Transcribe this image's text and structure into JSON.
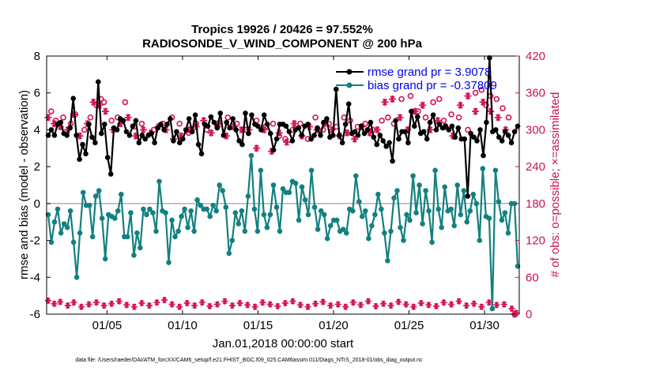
{
  "chart_data": {
    "type": "line",
    "title_line1": "Tropics 19926 / 20426 = 97.552%",
    "title_line2": "RADIOSONDE_V_WIND_COMPONENT @ 200 hPa",
    "xlabel": "Jan.01,2018 00:00:00 start",
    "ylabel": "rmse and bias (model - observation)",
    "ylabel_right": "# of obs: o=possible; ×=assimilated",
    "xlim": [
      1,
      32.3
    ],
    "ylim": [
      -6,
      8
    ],
    "ylim_right": [
      0,
      420
    ],
    "x_ticks": [
      5,
      10,
      15,
      20,
      25,
      30
    ],
    "x_tick_labels": [
      "01/05",
      "01/10",
      "01/15",
      "01/20",
      "01/25",
      "01/30"
    ],
    "y_ticks": [
      -6,
      -4,
      -2,
      0,
      2,
      4,
      6,
      8
    ],
    "y_tick_labels": [
      "-6",
      "-4",
      "-2",
      "0",
      "2",
      "4",
      "6",
      "8"
    ],
    "y2_ticks": [
      0,
      60,
      120,
      180,
      240,
      300,
      360,
      420
    ],
    "y2_tick_labels": [
      "0",
      "60",
      "120",
      "180",
      "240",
      "300",
      "360",
      "420"
    ],
    "footer": "data file: /Users/raeder/DAI/ATM_forcXX/CAM6_setup/f.e21.FHIST_BGC.f09_025.CAM6assim.011/Diags_NTrS_2018-01/obs_diag_output.nc",
    "colors": {
      "rmse": "#000000",
      "bias": "#138080",
      "counts": "#d4145a",
      "zero": "#b0b0b0",
      "legend_text": "#0000ee"
    },
    "series": [
      {
        "name": "rmse grand pr = 3.9078",
        "values": [
          3.7,
          4.0,
          3.7,
          4.3,
          4.4,
          3.8,
          3.7,
          4.1,
          5.7,
          3.7,
          2.4,
          3.2,
          2.7,
          4.3,
          3.6,
          3.3,
          6.6,
          3.8,
          4.3,
          2.5,
          1.6,
          4.1,
          4.0,
          4.6,
          4.5,
          3.9,
          3.7,
          4.2,
          4.5,
          3.3,
          3.7,
          3.5,
          3.7,
          3.8,
          3.3,
          4.1,
          4.3,
          4.0,
          4.3,
          4.6,
          3.4,
          3.9,
          3.3,
          3.5,
          4.0,
          4.6,
          3.9,
          4.8,
          3.2,
          2.7,
          4.3,
          4.2,
          4.7,
          4.4,
          4.1,
          4.9,
          3.7,
          4.4,
          4.1,
          4.6,
          4.0,
          3.4,
          3.2,
          4.9,
          3.8,
          4.8,
          4.3,
          4.2,
          4.0,
          4.8,
          4.3,
          3.8,
          2.9,
          3.5,
          4.3,
          4.3,
          4.2,
          3.9,
          3.4,
          4.0,
          4.1,
          3.7,
          4.2,
          4.3,
          3.5,
          3.7,
          4.1,
          3.7,
          4.4,
          4.6,
          3.6,
          3.7,
          6.2,
          3.7,
          3.3,
          4.3,
          5.4,
          3.8,
          3.9,
          3.7,
          4.2,
          3.8,
          4.0,
          4.4,
          3.6,
          3.2,
          3.7,
          3.4,
          3.1,
          3.3,
          2.3,
          4.5,
          3.5,
          3.9,
          3.9,
          3.3,
          5.0,
          4.2,
          4.7,
          3.8,
          3.9,
          3.5,
          4.4,
          4.8,
          4.0,
          4.3,
          4.1,
          4.2,
          4.0,
          4.2,
          3.6,
          4.1,
          3.5,
          3.5,
          0.4,
          3.8,
          3.6,
          3.4,
          4.0,
          2.6,
          4.4,
          7.9,
          3.9,
          4.0,
          3.6,
          3.4,
          3.9,
          3.7,
          3.3,
          3.9,
          4.2
        ],
        "role": "rmse"
      },
      {
        "name": "bias grand pr = -0.37809",
        "values": [
          -0.6,
          -2.1,
          -1.0,
          -0.3,
          -1.6,
          -1.1,
          -1.3,
          -0.4,
          -2.1,
          -4.0,
          -1.6,
          0.6,
          -0.1,
          -0.1,
          -1.8,
          0.4,
          0.7,
          -0.8,
          -3.0,
          -0.6,
          -0.7,
          -0.8,
          -0.4,
          0.5,
          -1.8,
          -1.8,
          -0.5,
          -2.8,
          -1.6,
          -2.4,
          -0.3,
          -0.6,
          -0.3,
          -0.5,
          -1.5,
          1.2,
          -0.4,
          -0.5,
          -3.2,
          -0.9,
          -1.8,
          -1.5,
          -0.7,
          -0.3,
          -1.3,
          -0.4,
          -1.5,
          0.2,
          -0.1,
          -0.3,
          -0.3,
          -0.7,
          -0.1,
          -0.4,
          1.0,
          0.7,
          -0.2,
          -2.7,
          -2.0,
          -0.5,
          -1.1,
          -0.4,
          -1.5,
          0.4,
          2.6,
          -0.3,
          -1.5,
          1.8,
          -0.6,
          -1.3,
          -0.6,
          1.0,
          -0.2,
          -1.5,
          0.8,
          0.6,
          0.6,
          1.2,
          1.1,
          -0.9,
          0.9,
          0.2,
          -0.6,
          1.8,
          -0.2,
          -1.4,
          -0.4,
          -0.6,
          -1.9,
          -1.2,
          -0.9,
          -0.9,
          -1.5,
          -1.4,
          -1.6,
          -0.3,
          -0.4,
          1.5,
          0.1,
          -0.7,
          -0.4,
          -1.9,
          -1.2,
          -0.6,
          0.5,
          -0.3,
          -1.6,
          -3.1,
          -1.5,
          0.3,
          0.7,
          -1.3,
          -2.0,
          -0.6,
          -0.9,
          1.5,
          -0.5,
          1.0,
          -1.1,
          0.7,
          -0.4,
          -2.1,
          1.8,
          -0.3,
          -1.3,
          0.9,
          -0.4,
          -0.3,
          -1.2,
          1.0,
          -0.6,
          0.7,
          -1.0,
          -0.4,
          0.5,
          0.0,
          -2.0,
          1.9,
          -0.7,
          -0.8,
          -5.7,
          1.8,
          0.1,
          -0.9,
          -0.5,
          -1.6,
          0.0,
          0.0,
          -3.4
        ],
        "role": "bias"
      }
    ],
    "obs_possible_x": [
      1.3,
      1.6,
      2.1,
      2.6,
      2.9,
      3.5,
      3.9,
      4.3,
      4.6,
      4.8,
      5.3,
      5.7,
      6.2,
      6.8,
      7.3,
      8.1,
      8.7,
      9.3,
      9.8,
      10.4,
      10.9,
      11.6,
      12.3,
      13.0,
      13.6,
      14.2,
      14.9,
      15.5,
      16.0,
      16.4,
      16.8,
      17.3,
      17.8,
      18.3,
      18.8,
      19.3,
      19.7,
      20.2,
      20.7,
      21.1,
      21.6,
      22.1,
      22.6,
      23.2,
      23.6,
      24.0,
      24.5,
      25.1,
      25.6,
      26.1,
      26.6,
      27.0,
      27.3,
      27.8,
      28.3,
      28.9,
      29.4,
      29.8,
      30.1,
      30.4,
      30.8,
      31.2,
      31.6,
      32.0
    ],
    "obs_possible": [
      330,
      315,
      320,
      310,
      325,
      300,
      320,
      340,
      350,
      345,
      315,
      320,
      345,
      305,
      310,
      300,
      310,
      320,
      310,
      295,
      310,
      300,
      305,
      320,
      310,
      300,
      315,
      305,
      310,
      290,
      285,
      300,
      310,
      285,
      320,
      300,
      310,
      305,
      320,
      315,
      305,
      310,
      300,
      315,
      320,
      310,
      350,
      355,
      330,
      320,
      345,
      350,
      315,
      325,
      320,
      300,
      360,
      365,
      340,
      355,
      350,
      335,
      320,
      0
    ],
    "obs_assim_x": [
      1.1,
      1.5,
      1.9,
      2.4,
      2.8,
      3.2,
      3.7,
      4.1,
      4.5,
      4.9,
      5.4,
      5.9,
      6.4,
      6.9,
      7.4,
      7.9,
      8.4,
      8.9,
      9.4,
      9.9,
      10.4,
      10.9,
      11.4,
      11.9,
      12.4,
      12.9,
      13.4,
      13.9,
      14.4,
      14.9,
      15.4,
      15.9,
      16.4,
      16.9,
      17.4,
      17.9,
      18.4,
      18.9,
      19.4,
      19.9,
      20.4,
      20.9,
      21.4,
      21.9,
      22.4,
      22.9,
      23.4,
      23.9,
      24.4,
      24.9,
      25.4,
      25.9,
      26.4,
      26.9,
      27.4,
      27.9,
      28.4,
      28.9,
      29.4,
      29.9,
      30.4,
      30.9,
      31.4,
      32.0
    ],
    "obs_assim": [
      320,
      310,
      305,
      300,
      325,
      290,
      310,
      345,
      340,
      330,
      300,
      310,
      320,
      290,
      300,
      295,
      305,
      300,
      285,
      290,
      300,
      305,
      315,
      295,
      310,
      290,
      305,
      300,
      300,
      270,
      300,
      265,
      295,
      280,
      310,
      290,
      305,
      300,
      310,
      300,
      290,
      295,
      285,
      305,
      295,
      300,
      345,
      350,
      320,
      300,
      330,
      340,
      300,
      315,
      305,
      290,
      340,
      355,
      330,
      345,
      330,
      320,
      300,
      0
    ],
    "obs_bottom_x": [
      1.1,
      1.5,
      1.9,
      2.4,
      2.8,
      3.3,
      3.8,
      4.3,
      4.8,
      5.3,
      5.8,
      6.3,
      6.8,
      7.3,
      7.8,
      8.3,
      8.8,
      9.3,
      9.8,
      10.3,
      10.8,
      11.3,
      11.8,
      12.3,
      12.8,
      13.3,
      13.8,
      14.3,
      14.8,
      15.3,
      15.8,
      16.3,
      16.8,
      17.3,
      17.8,
      18.3,
      18.8,
      19.3,
      19.8,
      20.3,
      20.8,
      21.3,
      21.8,
      22.3,
      22.8,
      23.3,
      23.8,
      24.3,
      24.8,
      25.3,
      25.8,
      26.3,
      26.8,
      27.3,
      27.8,
      28.3,
      28.8,
      29.3,
      29.8,
      30.3,
      30.8,
      31.3,
      31.8,
      32.1
    ],
    "obs_bottom": [
      22,
      17,
      20,
      14,
      19,
      12,
      16,
      19,
      14,
      17,
      21,
      15,
      12,
      18,
      14,
      19,
      23,
      16,
      12,
      18,
      14,
      19,
      13,
      16,
      21,
      14,
      18,
      15,
      12,
      19,
      16,
      13,
      18,
      21,
      15,
      12,
      17,
      20,
      14,
      16,
      12,
      19,
      15,
      21,
      13,
      17,
      14,
      20,
      16,
      12,
      18,
      15,
      13,
      19,
      16,
      21,
      14,
      17,
      12,
      19,
      15,
      16,
      9,
      2
    ]
  }
}
